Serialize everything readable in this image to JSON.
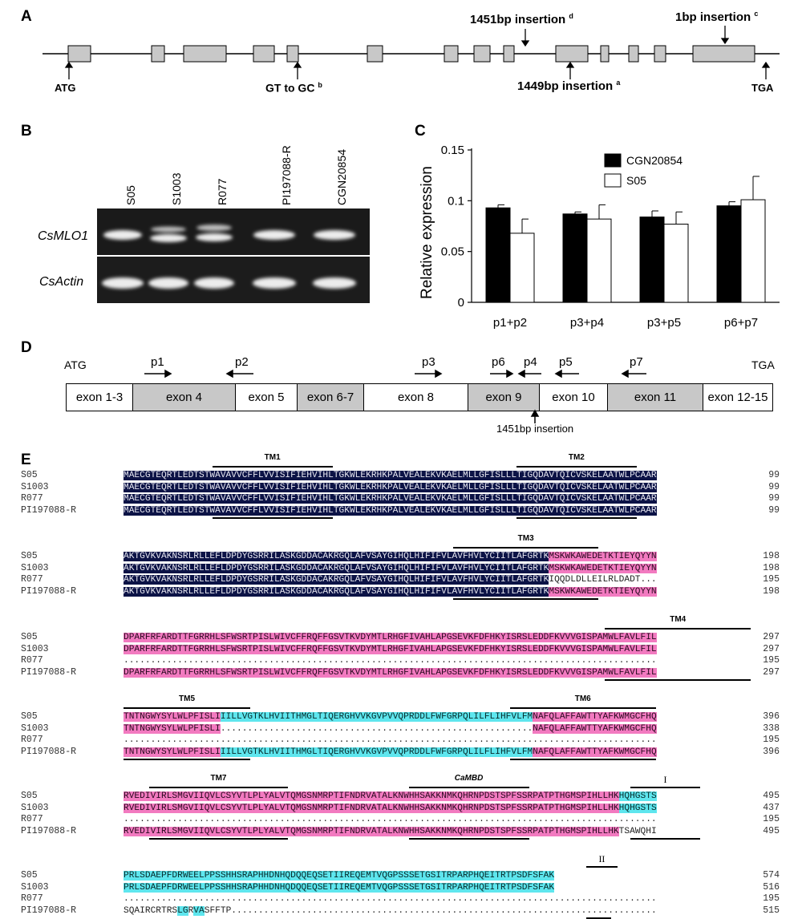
{
  "panels": {
    "A": {
      "letter": "A",
      "labels": {
        "atg": "ATG",
        "gt_gc": "GT to GC",
        "gt_gc_sup": "b",
        "ins1449": "1449bp insertion",
        "ins1449_sup": "a",
        "ins1451": "1451bp insertion",
        "ins1451_sup": "d",
        "ins1bp": "1bp insertion",
        "ins1bp_sup": "c",
        "tga": "TGA"
      }
    },
    "B": {
      "letter": "B",
      "lanes": [
        "S05",
        "S1003",
        "R077",
        "PI197088-R",
        "CGN20854"
      ],
      "rows": [
        "CsMLO1",
        "CsActin"
      ]
    },
    "C": {
      "letter": "C"
    },
    "D": {
      "letter": "D",
      "atg": "ATG",
      "tga": "TGA",
      "segments": [
        "exon 1-3",
        "exon 4",
        "exon 5",
        "exon 6-7",
        "exon 8",
        "exon 9",
        "exon 10",
        "exon 11",
        "exon 12-15"
      ],
      "primers": [
        "p1",
        "p2",
        "p3",
        "p6",
        "p4",
        "p5",
        "p7"
      ],
      "insertion": "1451bp insertion"
    },
    "E": {
      "letter": "E",
      "domain_labels": {
        "tm1": "TM1",
        "tm2": "TM2",
        "tm3": "TM3",
        "tm4": "TM4",
        "tm5": "TM5",
        "tm6": "TM6",
        "tm7": "TM7",
        "camBD": "CaMBD",
        "I": "I",
        "II": "II"
      },
      "names": [
        "S05",
        "S1003",
        "R077",
        "PI197088-R"
      ],
      "blocks": [
        {
          "rows": [
            {
              "seq": "MAECGTEQRTLEDTSTWAVAVVCFFLVVISIFIEHVIHLTGKWLEKRHKPALVEALEKVKAELMLLGFISLLLTIGQDAVTQICVSKELAATWLPCAAR",
              "num": "99"
            },
            {
              "seq": "MAECGTEQRTLEDTSTWAVAVVCFFLVVISIFIEHVIHLTGKWLEKRHKPALVEALEKVKAELMLLGFISLLLTIGQDAVTQICVSKELAATWLPCAAR",
              "num": "99"
            },
            {
              "seq": "MAECGTEQRTLEDTSTWAVAVVCFFLVVISIFIEHVIHLTGKWLEKRHKPALVEALEKVKAELMLLGFISLLLTIGQDAVTQICVSKELAATWLPCAAR",
              "num": "99"
            },
            {
              "seq": "MAECGTEQRTLEDTSTWAVAVVCFFLVVISIFIEHVIHLTGKWLEKRHKPALVEALEKVKAELMLLGFISLLLTIGQDAVTQICVSKELAATWLPCAAR",
              "num": "99"
            }
          ]
        },
        {
          "rows": [
            {
              "seq": "AKTGVKVAKNSRLRLLEFLDPDYGSRRILASKGDDACAKRGQLAFVSAYGIHQLHIFIFVLAVFHVLYCIITLAFGRTKMSKWKAWEDETKTIEYQYYN",
              "num": "198"
            },
            {
              "seq": "AKTGVKVAKNSRLRLLEFLDPDYGSRRILASKGDDACAKRGQLAFVSAYGIHQLHIFIFVLAVFHVLYCIITLAFGRTKMSKWKAWEDETKTIEYQYYN",
              "num": "198"
            },
            {
              "seq": "AKTGVKVAKNSRLRLLEFLDPDYGSRRILASKGDDACAKRGQLAFVSAYGIHQLHIFIFVLAVFHVLYCIITLAFGRTKIQQDLDLLEILRLDADT...",
              "num": "195"
            },
            {
              "seq": "AKTGVKVAKNSRLRLLEFLDPDYGSRRILASKGDDACAKRGQLAFVSAYGIHQLHIFIFVLAVFHVLYCIITLAFGRTKMSKWKAWEDETKTIEYQYYN",
              "num": "198"
            }
          ]
        },
        {
          "rows": [
            {
              "seq": "DPARFRFARDTTFGRRHLSFWSRTPISLWIVCFFRQFFGSVTKVDYMTLRHGFIVAHLAPGSEVKFDFHKYISRSLEDDFKVVVGISPAMWLFAVLFIL",
              "num": "297"
            },
            {
              "seq": "DPARFRFARDTTFGRRHLSFWSRTPISLWIVCFFRQFFGSVTKVDYMTLRHGFIVAHLAPGSEVKFDFHKYISRSLEDDFKVVVGISPAMWLFAVLFIL",
              "num": "297"
            },
            {
              "seq": "...................................................................................................",
              "num": "195"
            },
            {
              "seq": "DPARFRFARDTTFGRRHLSFWSRTPISLWIVCFFRQFFGSVTKVDYMTLRHGFIVAHLAPGSEVKFDFHKYISRSLEDDFKVVVGISPAMWLFAVLFIL",
              "num": "297"
            }
          ]
        },
        {
          "rows": [
            {
              "seq": "TNTNGWYSYLWLPFISLIIILLVGTKLHVIITHMGLTIQERGHVVKGVPVVQPRDDLFWFGRPQLILFLIHFVLFMNAFQLAFFAWTTYAFKWMGCFHQ",
              "num": "396"
            },
            {
              "seq": "TNTNGWYSYLWLPFISLI..........................................................NAFQLAFFAWTTYAFKWMGCFHQ",
              "num": "338"
            },
            {
              "seq": "...................................................................................................",
              "num": "195"
            },
            {
              "seq": "TNTNGWYSYLWLPFISLIIILLVGTKLHVIITHMGLTIQERGHVVKGVPVVQPRDDLFWFGRPQLILFLIHFVLFMNAFQLAFFAWTTYAFKWMGCFHQ",
              "num": "396"
            }
          ]
        },
        {
          "rows": [
            {
              "seq": "RVEDIVIRLSMGVIIQVLCSYVTLPLYALVTQMGSNMRPTIFNDRVATALKNWHHSAKKNMKQHRNPDSTSPFSSRPATPTHGMSPIHLLHKHQHGSTS",
              "num": "495"
            },
            {
              "seq": "RVEDIVIRLSMGVIIQVLCSYVTLPLYALVTQMGSNMRPTIFNDRVATALKNWHHSAKKNMKQHRNPDSTSPFSSRPATPTHGMSPIHLLHKHQHGSTS",
              "num": "437"
            },
            {
              "seq": "...................................................................................................",
              "num": "195"
            },
            {
              "seq": "RVEDIVIRLSMGVIIQVLCSYVTLPLYALVTQMGSNMRPTIFNDRVATALKNWHHSAKKNMKQHRNPDSTSPFSSRPATPTHGMSPIHLLHKTSAWQHI",
              "num": "495"
            }
          ]
        },
        {
          "rows": [
            {
              "seq": "PRLSDAEPFDRWEELPPSSHHSRAPHHDNHQDQQEQSETIIREQEMTVQGPSSSETGSITRPARPHQEITRTPSDFSFAK",
              "num": "574"
            },
            {
              "seq": "PRLSDAEPFDRWEELPPSSHHSRAPHHDNHQDQQEQSETIIREQEMTVQGPSSSETGSITRPARPHQEITRTPSDFSFAK",
              "num": "516"
            },
            {
              "seq": "...................................................................................................",
              "num": "195"
            },
            {
              "seq": "SQAIRCRTRSLGRVASFFTP...............................................................................",
              "num": "515"
            }
          ]
        }
      ]
    }
  },
  "chart_data": {
    "type": "bar",
    "categories": [
      "p1+p2",
      "p3+p4",
      "p3+p5",
      "p6+p7"
    ],
    "series": [
      {
        "name": "CGN20854",
        "values": [
          0.093,
          0.087,
          0.084,
          0.095
        ],
        "errors": [
          0.003,
          0.002,
          0.006,
          0.004
        ],
        "color": "#000000"
      },
      {
        "name": "S05",
        "values": [
          0.068,
          0.082,
          0.077,
          0.101
        ],
        "errors": [
          0.014,
          0.014,
          0.012,
          0.023
        ],
        "color": "#ffffff"
      }
    ],
    "xlabel": "",
    "ylabel": "Relative expression",
    "ylim": [
      0,
      0.15
    ],
    "yticks": [
      "0",
      "0.05",
      "0.1",
      "0.15"
    ],
    "ytick_values": [
      0,
      0.05,
      0.1,
      0.15
    ],
    "legend": "top-center"
  }
}
